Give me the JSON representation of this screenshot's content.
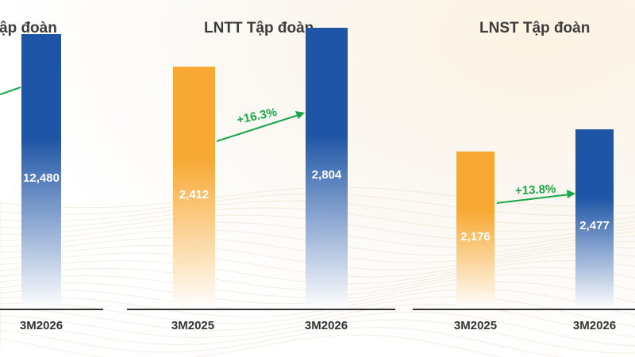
{
  "colors": {
    "prior_year": "#f8a934",
    "current_year": "#1f55a6",
    "growth": "#19a849",
    "axis": "#333333"
  },
  "chart_data": [
    {
      "type": "bar",
      "title": "ập đoàn",
      "categories": [
        "3M2026"
      ],
      "values": [
        12480
      ],
      "value_labels": [
        "12,480"
      ],
      "growth_label": "",
      "ylim": [
        0,
        13500
      ]
    },
    {
      "type": "bar",
      "title": "LNTT Tập đoàn",
      "categories": [
        "3M2025",
        "3M2026"
      ],
      "values": [
        2412,
        2804
      ],
      "value_labels": [
        "2,412",
        "2,804"
      ],
      "growth_label": "+16.3%",
      "ylim": [
        0,
        2960
      ]
    },
    {
      "type": "bar",
      "title": "LNST Tập đoàn",
      "categories": [
        "3M2025",
        "3M2026"
      ],
      "values": [
        2176,
        2477
      ],
      "value_labels": [
        "2,176",
        "2,477"
      ],
      "growth_label": "+13.8%",
      "ylim": [
        0,
        4100
      ]
    }
  ]
}
